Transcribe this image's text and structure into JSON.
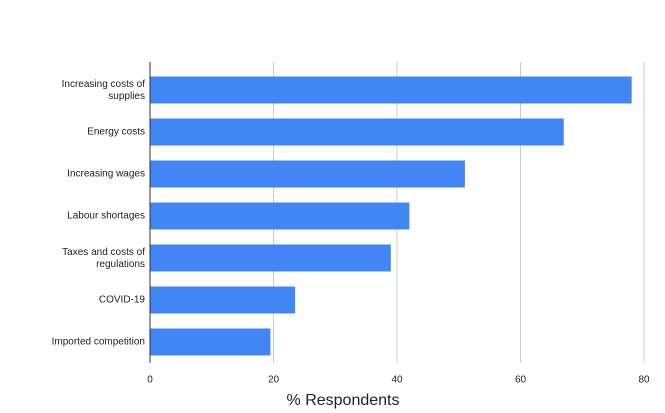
{
  "chart_data": {
    "type": "bar",
    "orientation": "horizontal",
    "x_label": "% Respondents",
    "categories": [
      "Increasing costs of supplies",
      "Energy costs",
      "Increasing wages",
      "Labour shortages",
      "Taxes and costs of regulations",
      "COVID-19",
      "Imported competition"
    ],
    "values": [
      78,
      67,
      51,
      42,
      39,
      23.5,
      19.5
    ],
    "color": "#4285f4",
    "xlim": [
      0,
      80
    ],
    "xticks": [
      0,
      20,
      40,
      60,
      80
    ],
    "grid": true
  }
}
